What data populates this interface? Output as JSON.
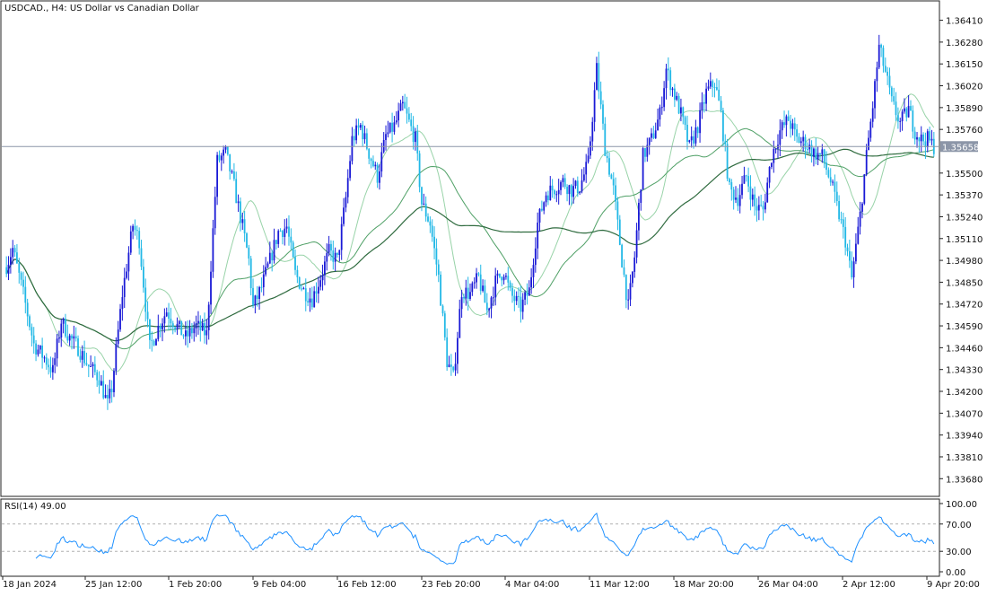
{
  "chart_data": {
    "type": "candlestick",
    "title": "USDCAD., H4:  US Dollar vs Canadian Dollar",
    "price_axis": {
      "ticks": [
        "1.33680",
        "1.33810",
        "1.33940",
        "1.34070",
        "1.34200",
        "1.34330",
        "1.34460",
        "1.34590",
        "1.34720",
        "1.34850",
        "1.34980",
        "1.35110",
        "1.35240",
        "1.35370",
        "1.35500",
        "1.35630",
        "1.35760",
        "1.35890",
        "1.36020",
        "1.36150",
        "1.36280",
        "1.36410"
      ],
      "range": [
        1.3358,
        1.3652
      ]
    },
    "current_price": {
      "label": "1.35658",
      "value": 1.35658
    },
    "x_axis": {
      "labels": [
        "18 Jan 2024",
        "25 Jan 12:00",
        "1 Feb 20:00",
        "9 Feb 04:00",
        "16 Feb 12:00",
        "23 Feb 20:00",
        "4 Mar 04:00",
        "11 Mar 12:00",
        "18 Mar 20:00",
        "26 Mar 04:00",
        "2 Apr 12:00",
        "9 Apr 20:00"
      ]
    },
    "price_path": [
      [
        0,
        1.3495
      ],
      [
        3,
        1.3505
      ],
      [
        8,
        1.3478
      ],
      [
        13,
        1.3448
      ],
      [
        18,
        1.344
      ],
      [
        22,
        1.3432
      ],
      [
        26,
        1.3462
      ],
      [
        30,
        1.3452
      ],
      [
        34,
        1.3446
      ],
      [
        39,
        1.3435
      ],
      [
        44,
        1.3428
      ],
      [
        48,
        1.3412
      ],
      [
        50,
        1.3422
      ],
      [
        55,
        1.3478
      ],
      [
        60,
        1.3519
      ],
      [
        63,
        1.351
      ],
      [
        68,
        1.3446
      ],
      [
        72,
        1.3458
      ],
      [
        76,
        1.3468
      ],
      [
        79,
        1.3462
      ],
      [
        85,
        1.3452
      ],
      [
        90,
        1.3459
      ],
      [
        95,
        1.3454
      ],
      [
        100,
        1.3557
      ],
      [
        104,
        1.3562
      ],
      [
        108,
        1.3542
      ],
      [
        112,
        1.3518
      ],
      [
        115,
        1.3498
      ],
      [
        117,
        1.347
      ],
      [
        121,
        1.3482
      ],
      [
        125,
        1.3498
      ],
      [
        129,
        1.3515
      ],
      [
        133,
        1.3518
      ],
      [
        137,
        1.349
      ],
      [
        141,
        1.348
      ],
      [
        145,
        1.3475
      ],
      [
        149,
        1.3488
      ],
      [
        153,
        1.3503
      ],
      [
        157,
        1.3498
      ],
      [
        161,
        1.3535
      ],
      [
        164,
        1.357
      ],
      [
        168,
        1.3578
      ],
      [
        172,
        1.3562
      ],
      [
        176,
        1.3548
      ],
      [
        180,
        1.3572
      ],
      [
        184,
        1.3578
      ],
      [
        188,
        1.359
      ],
      [
        191,
        1.358
      ],
      [
        194,
        1.357
      ],
      [
        197,
        1.3532
      ],
      [
        201,
        1.352
      ],
      [
        205,
        1.3488
      ],
      [
        209,
        1.3438
      ],
      [
        212,
        1.3428
      ],
      [
        216,
        1.348
      ],
      [
        220,
        1.3478
      ],
      [
        224,
        1.3488
      ],
      [
        228,
        1.3468
      ],
      [
        232,
        1.3485
      ],
      [
        236,
        1.3492
      ],
      [
        239,
        1.3478
      ],
      [
        244,
        1.347
      ],
      [
        248,
        1.348
      ],
      [
        252,
        1.352
      ],
      [
        256,
        1.3538
      ],
      [
        260,
        1.3541
      ],
      [
        264,
        1.3545
      ],
      [
        268,
        1.354
      ],
      [
        272,
        1.3542
      ],
      [
        276,
        1.3556
      ],
      [
        280,
        1.3612
      ],
      [
        284,
        1.3565
      ],
      [
        288,
        1.354
      ],
      [
        292,
        1.3498
      ],
      [
        295,
        1.347
      ],
      [
        298,
        1.35
      ],
      [
        302,
        1.356
      ],
      [
        306,
        1.357
      ],
      [
        310,
        1.3585
      ],
      [
        313,
        1.3612
      ],
      [
        316,
        1.36
      ],
      [
        320,
        1.3585
      ],
      [
        324,
        1.3565
      ],
      [
        328,
        1.3578
      ],
      [
        332,
        1.3598
      ],
      [
        336,
        1.3604
      ],
      [
        339,
        1.3585
      ],
      [
        343,
        1.354
      ],
      [
        347,
        1.3535
      ],
      [
        351,
        1.3548
      ],
      [
        355,
        1.353
      ],
      [
        359,
        1.3528
      ],
      [
        363,
        1.356
      ],
      [
        367,
        1.3575
      ],
      [
        371,
        1.3582
      ],
      [
        375,
        1.357
      ],
      [
        379,
        1.3568
      ],
      [
        383,
        1.3562
      ],
      [
        387,
        1.356
      ],
      [
        391,
        1.3545
      ],
      [
        394,
        1.353
      ],
      [
        398,
        1.351
      ],
      [
        401,
        1.3487
      ],
      [
        405,
        1.3525
      ],
      [
        408,
        1.356
      ],
      [
        411,
        1.359
      ],
      [
        414,
        1.3625
      ],
      [
        417,
        1.361
      ],
      [
        420,
        1.3592
      ],
      [
        424,
        1.358
      ],
      [
        428,
        1.3588
      ],
      [
        431,
        1.3575
      ],
      [
        434,
        1.357
      ],
      [
        437,
        1.357
      ],
      [
        440,
        1.3566
      ]
    ],
    "overlays": [
      {
        "period": 20,
        "color": "#98d3a8"
      },
      {
        "period": 50,
        "color": "#4fa066"
      },
      {
        "period": 100,
        "color": "#2f6b3f"
      }
    ],
    "rsi": {
      "label": "RSI(14) 49.00",
      "levels": [
        "100.00",
        "70.00",
        "30.00",
        "0.00"
      ],
      "range": [
        0,
        100
      ],
      "color": "#1e90ff"
    },
    "colors": {
      "bull": "#1a1ad6",
      "bear": "#22b8e6",
      "grid": "#b0b0b0",
      "price_line": "#8c96a8"
    }
  }
}
